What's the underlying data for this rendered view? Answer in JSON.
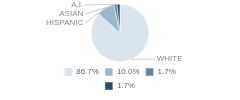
{
  "chart_data": {
    "type": "pie",
    "categories": [
      "WHITE",
      "HISPANIC",
      "ASIAN",
      "A.I."
    ],
    "values": [
      86.7,
      10.0,
      1.7,
      1.7
    ],
    "value_labels": [
      "86.7%",
      "10.0%",
      "1.7%",
      "1.7%"
    ],
    "colors": [
      "#d9e4ed",
      "#9ab8cc",
      "#5b86a0",
      "#2b4f6e"
    ],
    "legend": "bottom"
  }
}
